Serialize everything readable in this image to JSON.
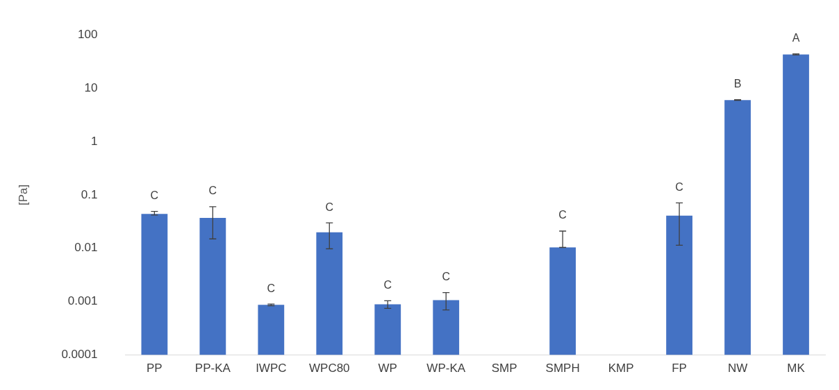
{
  "chart_data": {
    "type": "bar",
    "ylabel": "[Pa]",
    "categories": [
      "PP",
      "PP-KA",
      "IWPC",
      "WPC80",
      "WP",
      "WP-KA",
      "SMP",
      "SMPH",
      "KMP",
      "FP",
      "NW",
      "MK"
    ],
    "values": [
      0.044,
      0.037,
      0.00087,
      0.02,
      0.00089,
      0.00107,
      null,
      0.0104,
      null,
      0.041,
      6,
      43
    ],
    "errors": [
      [
        0.042,
        0.049
      ],
      [
        0.015,
        0.06
      ],
      [
        0.00084,
        0.0009
      ],
      [
        0.0098,
        0.03
      ],
      [
        0.00075,
        0.00104
      ],
      [
        0.0007,
        0.00148
      ],
      null,
      [
        0.0104,
        0.021
      ],
      null,
      [
        0.0114,
        0.071
      ],
      [
        5.9,
        6.1
      ],
      [
        42,
        44
      ]
    ],
    "color": "#4472c4",
    "log": true,
    "ylim": [
      0.0001,
      100
    ],
    "yticks": [
      0.0001,
      0.001,
      0.01,
      0.1,
      1,
      10,
      100
    ],
    "grid": false,
    "legend": false,
    "annotations": [
      {
        "text": "C",
        "x": "PP",
        "y": 0.049
      },
      {
        "text": "C",
        "x": "PP-KA",
        "y": 0.06
      },
      {
        "text": "C",
        "x": "IWPC",
        "y": 0.0009
      },
      {
        "text": "C",
        "x": "WPC80",
        "y": 0.03
      },
      {
        "text": "C",
        "x": "WP",
        "y": 0.00104
      },
      {
        "text": "C",
        "x": "WP-KA",
        "y": 0.00148
      },
      {
        "text": "C",
        "x": "SMPH",
        "y": 0.021
      },
      {
        "text": "C",
        "x": "FP",
        "y": 0.071
      },
      {
        "text": "B",
        "x": "NW",
        "y": 6.1
      },
      {
        "text": "A",
        "x": "MK",
        "y": 44
      }
    ]
  }
}
